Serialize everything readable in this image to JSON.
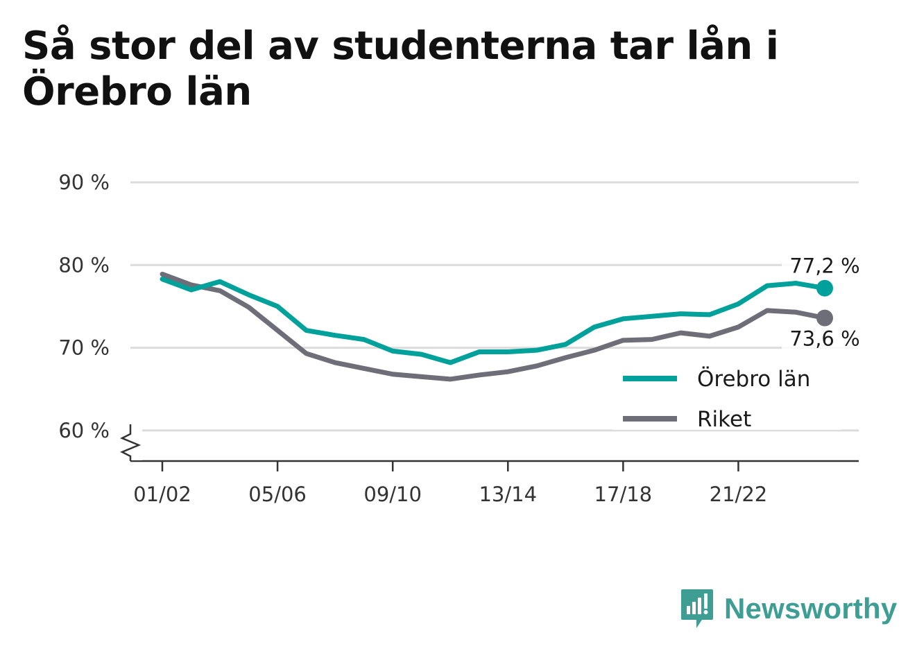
{
  "title": "Så stor del av studenterna tar lån i Örebro län",
  "brand": {
    "name": "Newsworthy",
    "icon": "newsworthy-logo-icon"
  },
  "colors": {
    "orebro": "#00a19a",
    "riket": "#6e6e78",
    "grid": "#dcdcdc",
    "axis": "#333333"
  },
  "chart_data": {
    "type": "line",
    "x": [
      "01/02",
      "02/03",
      "03/04",
      "04/05",
      "05/06",
      "06/07",
      "07/08",
      "08/09",
      "09/10",
      "10/11",
      "11/12",
      "12/13",
      "13/14",
      "14/15",
      "15/16",
      "16/17",
      "17/18",
      "18/19",
      "19/20",
      "20/21",
      "21/22",
      "22/23",
      "23/24",
      "24/25"
    ],
    "xticks": [
      "01/02",
      "05/06",
      "09/10",
      "13/14",
      "17/18",
      "21/22"
    ],
    "yticks": [
      {
        "value": 60,
        "label": "60 %"
      },
      {
        "value": 70,
        "label": "70 %"
      },
      {
        "value": 80,
        "label": "80 %"
      },
      {
        "value": 90,
        "label": "90 %"
      }
    ],
    "ylim": [
      56.3,
      90
    ],
    "axis_break": true,
    "grid": true,
    "legend_position": "bottom-right",
    "series": [
      {
        "name": "Örebro län",
        "color": "#00a19a",
        "values": [
          78.3,
          77.0,
          78.0,
          76.4,
          75.0,
          72.1,
          71.5,
          71.0,
          69.6,
          69.2,
          68.2,
          69.5,
          69.5,
          69.7,
          70.4,
          72.5,
          73.5,
          73.8,
          74.1,
          74.0,
          75.3,
          77.5,
          77.8,
          77.2
        ],
        "end_label": "77,2 %"
      },
      {
        "name": "Riket",
        "color": "#6e6e78",
        "values": [
          78.9,
          77.6,
          76.9,
          74.9,
          72.1,
          69.3,
          68.2,
          67.5,
          66.8,
          66.5,
          66.2,
          66.7,
          67.1,
          67.8,
          68.8,
          69.7,
          70.9,
          71.0,
          71.8,
          71.4,
          72.5,
          74.5,
          74.3,
          73.6
        ],
        "end_label": "73,6 %"
      }
    ]
  }
}
